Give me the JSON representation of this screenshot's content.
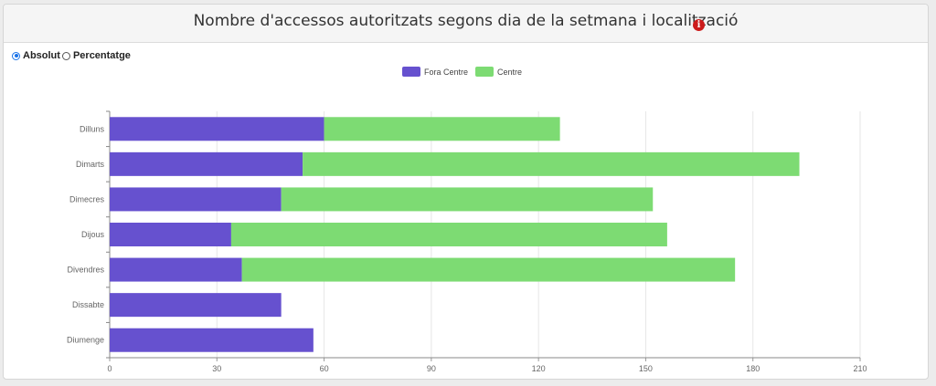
{
  "panel": {
    "title": "Nombre d'accessos autoritzats segons dia de la setmana i localització",
    "info_icon": "info-icon"
  },
  "mode": {
    "options": [
      {
        "label": "Absolut",
        "checked": true
      },
      {
        "label": "Percentatge",
        "checked": false
      }
    ]
  },
  "chart_data": {
    "type": "bar",
    "orientation": "horizontal",
    "stacked": true,
    "categories": [
      "Dilluns",
      "Dimarts",
      "Dimecres",
      "Dijous",
      "Divendres",
      "Dissabte",
      "Diumenge"
    ],
    "series": [
      {
        "name": "Fora Centre",
        "color": "#6651cf",
        "values": [
          60,
          54,
          48,
          34,
          37,
          48,
          57
        ]
      },
      {
        "name": "Centre",
        "color": "#7ddb73",
        "values": [
          66,
          139,
          104,
          122,
          138,
          0,
          0
        ]
      }
    ],
    "xticks": [
      0,
      30,
      60,
      90,
      120,
      150,
      180,
      210
    ],
    "xlim": [
      0,
      210
    ],
    "grid": true,
    "legend_position": "top-center"
  }
}
